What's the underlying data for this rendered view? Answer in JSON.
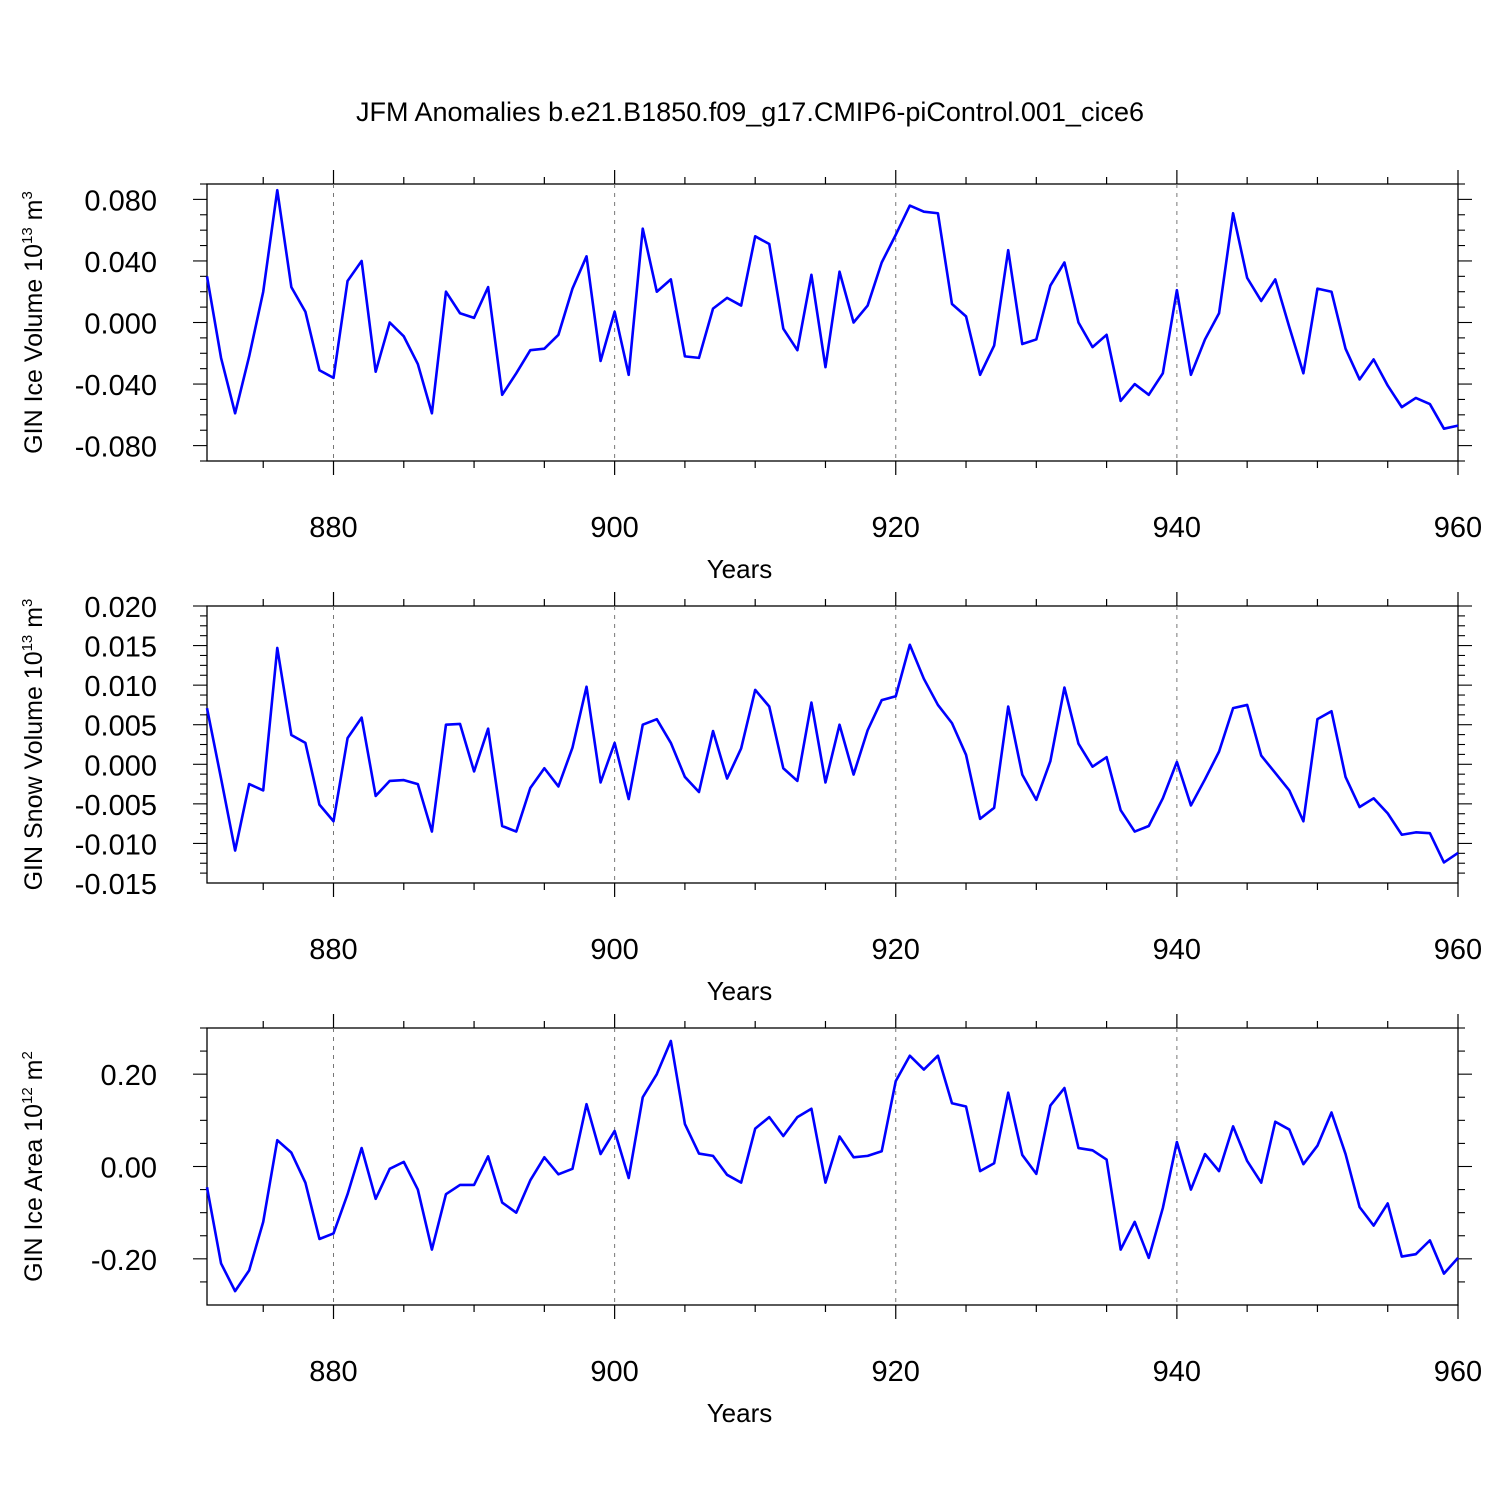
{
  "title": "JFM Anomalies b.e21.B1850.f09_g17.CMIP6-piControl.001_cice6",
  "line_color": "#0000ff",
  "chart_data": [
    {
      "type": "line",
      "xlabel": "Years",
      "ylabel": {
        "main": "GIN Ice Volume 10",
        "exp": "13",
        "unit": " m",
        "unit_exp": "3"
      },
      "xlim": [
        871,
        960
      ],
      "ylim": [
        -0.09,
        0.09
      ],
      "xticks": [
        "880",
        "900",
        "920",
        "940",
        "960"
      ],
      "yticks": [
        "0.080",
        "0.040",
        "0.000",
        "-0.040",
        "-0.080"
      ],
      "series": [
        {
          "x_start": 871,
          "values": [
            0.03,
            -0.023,
            -0.059,
            -0.022,
            0.02,
            0.086,
            0.023,
            0.007,
            -0.031,
            -0.036,
            0.027,
            0.04,
            -0.032,
            0.0,
            -0.009,
            -0.027,
            -0.059,
            0.02,
            0.006,
            0.003,
            0.023,
            -0.047,
            -0.033,
            -0.018,
            -0.017,
            -0.008,
            0.022,
            0.043,
            -0.025,
            0.007,
            -0.034,
            0.061,
            0.02,
            0.028,
            -0.022,
            -0.023,
            0.009,
            0.016,
            0.011,
            0.056,
            0.051,
            -0.004,
            -0.018,
            0.031,
            -0.029,
            0.033,
            0.0,
            0.011,
            0.039,
            0.057,
            0.076,
            0.072,
            0.071,
            0.012,
            0.004,
            -0.034,
            -0.015,
            0.047,
            -0.014,
            -0.011,
            0.024,
            0.039,
            0.0,
            -0.016,
            -0.008,
            -0.051,
            -0.04,
            -0.047,
            -0.033,
            0.021,
            -0.034,
            -0.011,
            0.006,
            0.071,
            0.029,
            0.014,
            0.028,
            -0.003,
            -0.033,
            0.022,
            0.02,
            -0.017,
            -0.037,
            -0.024,
            -0.041,
            -0.055,
            -0.049,
            -0.053,
            -0.069,
            -0.067
          ]
        }
      ]
    },
    {
      "type": "line",
      "xlabel": "Years",
      "ylabel": {
        "main": "GIN Snow Volume 10",
        "exp": "13",
        "unit": " m",
        "unit_exp": "3"
      },
      "xlim": [
        871,
        960
      ],
      "ylim": [
        -0.015,
        0.02
      ],
      "xticks": [
        "880",
        "900",
        "920",
        "940",
        "960"
      ],
      "yticks": [
        "0.020",
        "0.015",
        "0.010",
        "0.005",
        "0.000",
        "-0.005",
        "-0.010",
        "-0.015"
      ],
      "series": [
        {
          "x_start": 871,
          "values": [
            0.0071,
            -0.0018,
            -0.0109,
            -0.0025,
            -0.0033,
            0.0147,
            0.0037,
            0.0027,
            -0.0051,
            -0.0072,
            0.0033,
            0.0059,
            -0.004,
            -0.0021,
            -0.002,
            -0.0025,
            -0.0085,
            0.005,
            0.0051,
            -0.0009,
            0.0045,
            -0.0078,
            -0.0085,
            -0.003,
            -0.0005,
            -0.0028,
            0.0021,
            0.0098,
            -0.0023,
            0.0027,
            -0.0044,
            0.005,
            0.0057,
            0.0027,
            -0.0016,
            -0.0035,
            0.0042,
            -0.0018,
            0.002,
            0.0094,
            0.0073,
            -0.0005,
            -0.0021,
            0.0078,
            -0.0023,
            0.005,
            -0.0013,
            0.0043,
            0.0081,
            0.0086,
            0.0151,
            0.0108,
            0.0075,
            0.0052,
            0.0012,
            -0.0069,
            -0.0055,
            0.0073,
            -0.0013,
            -0.0045,
            0.0004,
            0.0097,
            0.0026,
            -0.0003,
            0.0009,
            -0.0058,
            -0.0085,
            -0.0078,
            -0.0043,
            0.0003,
            -0.0052,
            -0.0019,
            0.0016,
            0.0071,
            0.0075,
            0.0011,
            -0.0011,
            -0.0033,
            -0.0072,
            0.0057,
            0.0067,
            -0.0016,
            -0.0054,
            -0.0043,
            -0.0062,
            -0.0089,
            -0.0086,
            -0.0087,
            -0.0124,
            -0.0112
          ]
        }
      ]
    },
    {
      "type": "line",
      "xlabel": "Years",
      "ylabel": {
        "main": "GIN Ice Area 10",
        "exp": "12",
        "unit": " m",
        "unit_exp": "2"
      },
      "xlim": [
        871,
        960
      ],
      "ylim": [
        -0.3,
        0.3
      ],
      "xticks": [
        "880",
        "900",
        "920",
        "940",
        "960"
      ],
      "yticks": [
        "0.20",
        "0.00",
        "-0.20"
      ],
      "series": [
        {
          "x_start": 871,
          "values": [
            -0.045,
            -0.21,
            -0.27,
            -0.225,
            -0.12,
            0.057,
            0.03,
            -0.035,
            -0.157,
            -0.145,
            -0.06,
            0.04,
            -0.07,
            -0.005,
            0.01,
            -0.05,
            -0.18,
            -0.06,
            -0.04,
            -0.04,
            0.022,
            -0.078,
            -0.1,
            -0.03,
            0.02,
            -0.017,
            -0.005,
            0.135,
            0.027,
            0.077,
            -0.025,
            0.15,
            0.2,
            0.272,
            0.092,
            0.028,
            0.023,
            -0.018,
            -0.035,
            0.082,
            0.107,
            0.066,
            0.107,
            0.125,
            -0.035,
            0.065,
            0.02,
            0.023,
            0.033,
            0.185,
            0.24,
            0.21,
            0.24,
            0.137,
            0.13,
            -0.01,
            0.007,
            0.16,
            0.025,
            -0.016,
            0.132,
            0.17,
            0.04,
            0.035,
            0.015,
            -0.18,
            -0.12,
            -0.198,
            -0.09,
            0.053,
            -0.05,
            0.027,
            -0.01,
            0.087,
            0.012,
            -0.035,
            0.097,
            0.08,
            0.005,
            0.045,
            0.117,
            0.027,
            -0.088,
            -0.128,
            -0.08,
            -0.195,
            -0.19,
            -0.16,
            -0.232,
            -0.198
          ]
        }
      ]
    }
  ]
}
